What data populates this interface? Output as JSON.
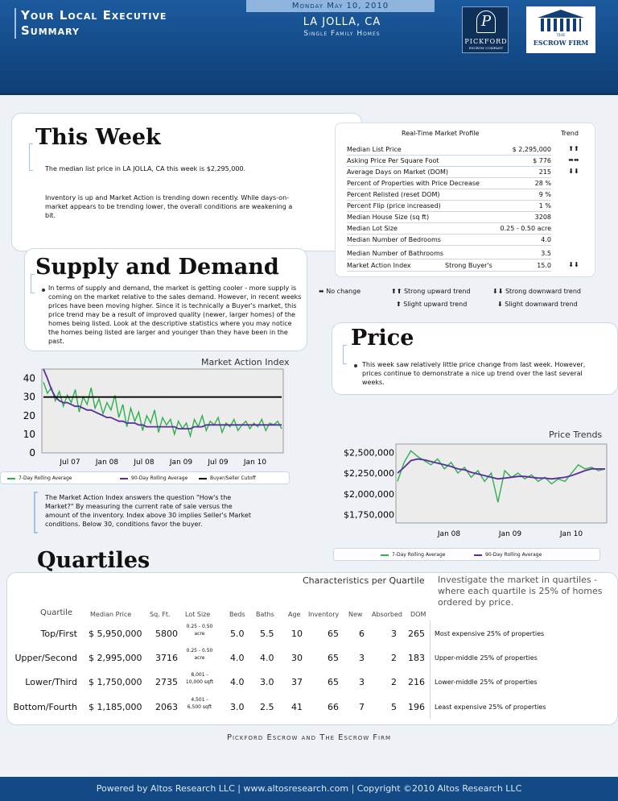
{
  "header": {
    "title_line1": "Your Local Executive",
    "title_line2": "Summary",
    "date": "Monday May 10, 2010",
    "city": "LA JOLLA, CA",
    "property_type": "Single Family Homes",
    "logo1_letter": "P",
    "logo1_name": "PICKFORD",
    "logo1_sub": "ESCROW COMPANY",
    "logo2_the": "THE",
    "logo2_name": "ESCROW FIRM"
  },
  "this_week": {
    "heading": "This Week",
    "p1": "The median list price in LA JOLLA, CA this week is $2,295,000.",
    "p2": "Inventory is up and Market Action is trending down recently. While days-on-market appears to be trending lower, the overall conditions are weakening a bit."
  },
  "market_profile": {
    "heading": "Real-Time Market Profile",
    "trend_heading": "Trend",
    "rows": [
      {
        "label": "Median List Price",
        "mid": "",
        "value": "$ 2,295,000",
        "trend": "⬆⬆"
      },
      {
        "label": "Asking Price Per Square Foot",
        "mid": "",
        "value": "$ 776",
        "trend": "⬌⬌"
      },
      {
        "label": "Average Days on Market (DOM)",
        "mid": "",
        "value": "215",
        "trend": "⬇⬇"
      },
      {
        "label": "Percent of Properties with Price Decrease",
        "mid": "",
        "value": "28 %",
        "trend": ""
      },
      {
        "label": "Percent Relisted (reset DOM)",
        "mid": "",
        "value": "9 %",
        "trend": ""
      },
      {
        "label": "Percent Flip (price increased)",
        "mid": "",
        "value": "1 %",
        "trend": ""
      },
      {
        "label": "Median House Size (sq ft)",
        "mid": "",
        "value": "3208",
        "trend": ""
      },
      {
        "label": "Median Lot Size",
        "mid": "",
        "value": "0.25 - 0.50 acre",
        "trend": ""
      },
      {
        "label": "Median Number of Bedrooms",
        "mid": "",
        "value": "4.0",
        "trend": ""
      },
      {
        "label": "Median Number of Bathrooms",
        "mid": "",
        "value": "3.5",
        "trend": ""
      },
      {
        "label": "Market Action Index",
        "mid": "Strong Buyer's",
        "value": "15.0",
        "trend": "⬇⬇"
      }
    ],
    "legend": {
      "no_change": "No change",
      "strong_up": "Strong upward trend",
      "strong_down": "Strong downward trend",
      "slight_up": "Slight upward trend",
      "slight_down": "Slight downward trend"
    }
  },
  "supply_demand": {
    "heading": "Supply and Demand",
    "text": "In terms of supply and demand, the market is getting cooler - more supply is coming on the market relative to the sales demand. However, in recent weeks prices have been moving higher. Since it is technically a Buyer's market, this price trend may be a result of improved quality (newer, larger homes) of the homes being listed. Look at the descriptive statistics where you may notice the homes being listed are larger and younger than they have been in the past."
  },
  "price": {
    "heading": "Price",
    "text": "This week saw relatively little price change from last week. However, prices continue to demonstrate a nice up trend over the last several weeks."
  },
  "mai_note": "The Market Action Index answers the question \"How's the Market?\" By measuring the current rate of sale versus the amount of the inventory.  Index above 30 implies Seller's Market conditions. Below 30, conditions favor the buyer.",
  "chart_data": [
    {
      "type": "line",
      "title": "Market Action Index",
      "x_ticks": [
        "Jul 07",
        "Jan 08",
        "Jul 08",
        "Jan 09",
        "Jul 09",
        "Jan 10"
      ],
      "y_ticks": [
        "40",
        "30",
        "20",
        "10",
        "0"
      ],
      "ylim": [
        0,
        45
      ],
      "series": [
        {
          "name": "7-Day Rolling Average",
          "color": "#2bb24c",
          "values": [
            38,
            32,
            35,
            28,
            33,
            25,
            31,
            27,
            34,
            22,
            30,
            26,
            35,
            24,
            29,
            21,
            27,
            23,
            31,
            19,
            26,
            14,
            24,
            17,
            22,
            12,
            20,
            16,
            23,
            11,
            19,
            15,
            18,
            10,
            17,
            13,
            16,
            9,
            18,
            14,
            20,
            12,
            17,
            15,
            19,
            11,
            16,
            14,
            18,
            12,
            15,
            17,
            13,
            16,
            14,
            18,
            12,
            16,
            15,
            17,
            13
          ]
        },
        {
          "name": "90-Day Rolling Average",
          "color": "#5b2e9e",
          "values": [
            45,
            40,
            34,
            30,
            28,
            27,
            27,
            26,
            25,
            25,
            24,
            23,
            23,
            22,
            21,
            20,
            19,
            19,
            18,
            17,
            17,
            16,
            16,
            16,
            15,
            15,
            14,
            14,
            14,
            14,
            14,
            14,
            14,
            14,
            13,
            13,
            13,
            13,
            14,
            14,
            14,
            15,
            15,
            15,
            15,
            15,
            15,
            15,
            15,
            15,
            15,
            15,
            15,
            15,
            15,
            15,
            15,
            15,
            15,
            15,
            15
          ]
        },
        {
          "name": "Buyer/Seller Cutoff",
          "color": "#000000",
          "values": [
            30,
            30,
            30,
            30,
            30,
            30,
            30,
            30,
            30,
            30,
            30,
            30,
            30,
            30,
            30,
            30,
            30,
            30,
            30,
            30,
            30,
            30,
            30,
            30,
            30,
            30,
            30,
            30,
            30,
            30,
            30,
            30,
            30,
            30,
            30,
            30,
            30,
            30,
            30,
            30,
            30,
            30,
            30,
            30,
            30,
            30,
            30,
            30,
            30,
            30,
            30,
            30,
            30,
            30,
            30,
            30,
            30,
            30,
            30,
            30,
            30
          ]
        }
      ]
    },
    {
      "type": "line",
      "title": "Price Trends",
      "x_ticks": [
        "Jan 08",
        "Jan 09",
        "Jan 10"
      ],
      "y_ticks": [
        "$2,500,000",
        "$2,250,000",
        "$2,000,000",
        "$1,750,000"
      ],
      "ylim": [
        1650000,
        2600000
      ],
      "series": [
        {
          "name": "7-Day Rolling Average",
          "color": "#2bb24c",
          "values": [
            2150000,
            2380000,
            2520000,
            2450000,
            2400000,
            2350000,
            2420000,
            2300000,
            2380000,
            2250000,
            2320000,
            2200000,
            2280000,
            2150000,
            2250000,
            1900000,
            2280000,
            2200000,
            2250000,
            2180000,
            2230000,
            2150000,
            2200000,
            2120000,
            2180000,
            2150000,
            2250000,
            2350000,
            2300000,
            2320000,
            2280000,
            2300000
          ]
        },
        {
          "name": "90-Day Rolling Average",
          "color": "#5b2e9e",
          "values": [
            2250000,
            2320000,
            2400000,
            2420000,
            2410000,
            2390000,
            2370000,
            2350000,
            2330000,
            2300000,
            2290000,
            2260000,
            2240000,
            2220000,
            2200000,
            2180000,
            2190000,
            2200000,
            2210000,
            2210000,
            2200000,
            2190000,
            2190000,
            2180000,
            2190000,
            2200000,
            2220000,
            2250000,
            2280000,
            2300000,
            2300000,
            2300000
          ]
        }
      ]
    }
  ],
  "quartiles": {
    "heading": "Quartiles",
    "caption": "Characteristics per Quartile",
    "intro": "Investigate the market in quartiles - where each quartile is 25% of homes ordered by price.",
    "columns": [
      "Quartile",
      "Median Price",
      "Sq. Ft.",
      "Lot Size",
      "Beds",
      "Baths",
      "Age",
      "Inventory",
      "New",
      "Absorbed",
      "DOM"
    ],
    "rows": [
      {
        "quartile": "Top/First",
        "price": "$ 5,950,000",
        "sqft": "5800",
        "lot1": "0.25 - 0.50",
        "lot2": "acre",
        "beds": "5.0",
        "baths": "5.5",
        "age": "10",
        "inv": "65",
        "new": "6",
        "abs": "3",
        "dom": "265",
        "desc": "Most expensive 25% of properties"
      },
      {
        "quartile": "Upper/Second",
        "price": "$ 2,995,000",
        "sqft": "3716",
        "lot1": "0.25 - 0.50",
        "lot2": "acre",
        "beds": "4.0",
        "baths": "4.0",
        "age": "30",
        "inv": "65",
        "new": "3",
        "abs": "2",
        "dom": "183",
        "desc": "Upper-middle 25% of properties"
      },
      {
        "quartile": "Lower/Third",
        "price": "$ 1,750,000",
        "sqft": "2735",
        "lot1": "8,001 -",
        "lot2": "10,000 sqft",
        "beds": "4.0",
        "baths": "3.0",
        "age": "37",
        "inv": "65",
        "new": "3",
        "abs": "2",
        "dom": "216",
        "desc": "Lower-middle 25% of properties"
      },
      {
        "quartile": "Bottom/Fourth",
        "price": "$ 1,185,000",
        "sqft": "2063",
        "lot1": "4,501 -",
        "lot2": "6,500 sqft",
        "beds": "3.0",
        "baths": "2.5",
        "age": "41",
        "inv": "66",
        "new": "7",
        "abs": "5",
        "dom": "196",
        "desc": "Least expensive 25% of properties"
      }
    ]
  },
  "footer": {
    "firms": "Pickford Escrow and The Escrow Firm",
    "powered": "Powered by Altos Research LLC | www.altosresearch.com | Copyright ©2010 Altos Research LLC"
  }
}
